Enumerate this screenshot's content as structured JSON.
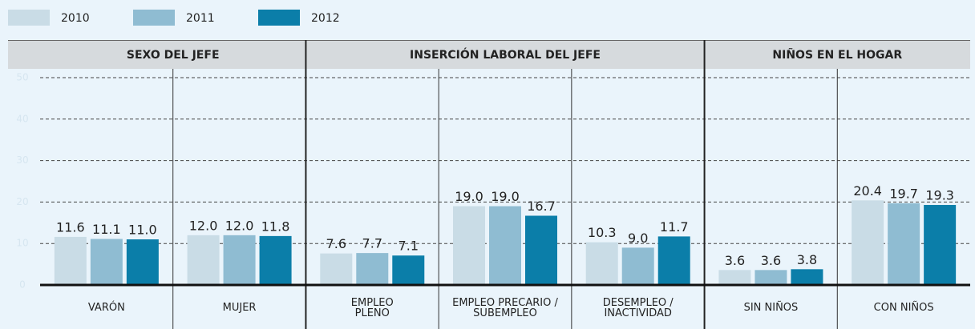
{
  "chart_data": {
    "type": "bar",
    "categories": [
      "VARÓN",
      "MUJER",
      "EMPLEO PLENO",
      "EMPLEO PRECARIO / SUBEMPLEO",
      "DESEMPLEO / INACTIVIDAD",
      "SIN NIÑOS",
      "CON NIÑOS"
    ],
    "groups": [
      {
        "name": "SEXO DEL JEFE",
        "span": 2
      },
      {
        "name": "INSERCIÓN LABORAL DEL JEFE",
        "span": 3
      },
      {
        "name": "NIÑOS EN EL HOGAR",
        "span": 2
      }
    ],
    "series": [
      {
        "name": "2010",
        "color": "#c9dce6",
        "values": [
          11.6,
          12.0,
          7.6,
          19.0,
          10.3,
          3.6,
          20.4
        ],
        "value_labels": [
          "11.6",
          "12.0",
          "7.6",
          "19.0",
          "10.3",
          "3.6",
          "20.4"
        ]
      },
      {
        "name": "2011",
        "color": "#8fbcd2",
        "values": [
          11.1,
          12.0,
          7.7,
          19.0,
          9.0,
          3.6,
          19.7
        ],
        "value_labels": [
          "11.1",
          "12.0",
          "7.7",
          "19.0",
          "9.0",
          "3.6",
          "19.7"
        ]
      },
      {
        "name": "2012",
        "color": "#0b7ea9",
        "values": [
          11.0,
          11.8,
          7.1,
          16.7,
          11.7,
          3.8,
          19.3
        ],
        "value_labels": [
          "11.0",
          "11.8",
          "7.1",
          "16.7",
          "11.7",
          "3.8",
          "19.3"
        ]
      }
    ],
    "ylim": [
      0,
      50
    ],
    "yticks": [
      0,
      10,
      20,
      30,
      40,
      50
    ],
    "grid": true,
    "legend": "top-left"
  }
}
